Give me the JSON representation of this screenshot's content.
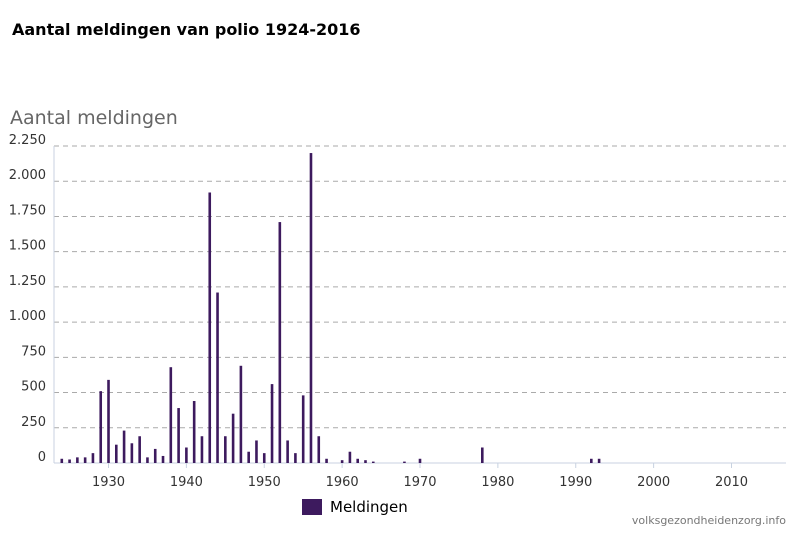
{
  "chart_data": {
    "type": "bar",
    "title": "Aantal meldingen van polio 1924-2016",
    "ylabel": "Aantal meldingen",
    "xlabel": "",
    "ylim": [
      0,
      2250
    ],
    "xlim": [
      1923,
      2017
    ],
    "yticks": [
      0,
      250,
      500,
      750,
      1000,
      1250,
      1500,
      1750,
      2000,
      2250
    ],
    "ytick_labels": [
      "0",
      "250",
      "500",
      "750",
      "1.000",
      "1.250",
      "1.500",
      "1.750",
      "2.000",
      "2.250"
    ],
    "xticks": [
      1930,
      1940,
      1950,
      1960,
      1970,
      1980,
      1990,
      2000,
      2010
    ],
    "xtick_labels": [
      "1930",
      "1940",
      "1950",
      "1960",
      "1970",
      "1980",
      "1990",
      "2000",
      "2010"
    ],
    "grid": "horizontal dashed",
    "legend_position": "bottom-left",
    "series": [
      {
        "name": "Meldingen",
        "color": "#3d1a5e",
        "x": [
          1924,
          1925,
          1926,
          1927,
          1928,
          1929,
          1930,
          1931,
          1932,
          1933,
          1934,
          1935,
          1936,
          1937,
          1938,
          1939,
          1940,
          1941,
          1942,
          1943,
          1944,
          1945,
          1946,
          1947,
          1948,
          1949,
          1950,
          1951,
          1952,
          1953,
          1954,
          1955,
          1956,
          1957,
          1958,
          1959,
          1960,
          1961,
          1962,
          1963,
          1964,
          1965,
          1966,
          1967,
          1968,
          1969,
          1970,
          1971,
          1972,
          1973,
          1974,
          1975,
          1976,
          1977,
          1978,
          1979,
          1980,
          1981,
          1982,
          1983,
          1984,
          1985,
          1986,
          1987,
          1988,
          1989,
          1990,
          1991,
          1992,
          1993,
          1994,
          1995,
          1996,
          1997,
          1998,
          1999,
          2000,
          2001,
          2002,
          2003,
          2004,
          2005,
          2006,
          2007,
          2008,
          2009,
          2010,
          2011,
          2012,
          2013,
          2014,
          2015,
          2016
        ],
        "values": [
          30,
          25,
          40,
          40,
          70,
          510,
          590,
          130,
          230,
          140,
          190,
          40,
          100,
          50,
          680,
          390,
          110,
          440,
          190,
          1920,
          1210,
          190,
          350,
          690,
          80,
          160,
          70,
          560,
          1710,
          160,
          70,
          480,
          2200,
          190,
          30,
          0,
          20,
          80,
          30,
          20,
          10,
          0,
          0,
          0,
          10,
          0,
          30,
          0,
          0,
          0,
          0,
          0,
          0,
          0,
          110,
          0,
          0,
          0,
          0,
          0,
          0,
          0,
          0,
          0,
          0,
          0,
          0,
          0,
          30,
          30,
          0,
          0,
          0,
          0,
          0,
          0,
          0,
          0,
          0,
          0,
          0,
          0,
          0,
          0,
          0,
          0,
          0,
          0,
          0,
          0,
          0,
          0,
          0
        ]
      }
    ]
  },
  "legend": {
    "label": "Meldingen"
  },
  "source": "volksgezondheidenzorg.info"
}
